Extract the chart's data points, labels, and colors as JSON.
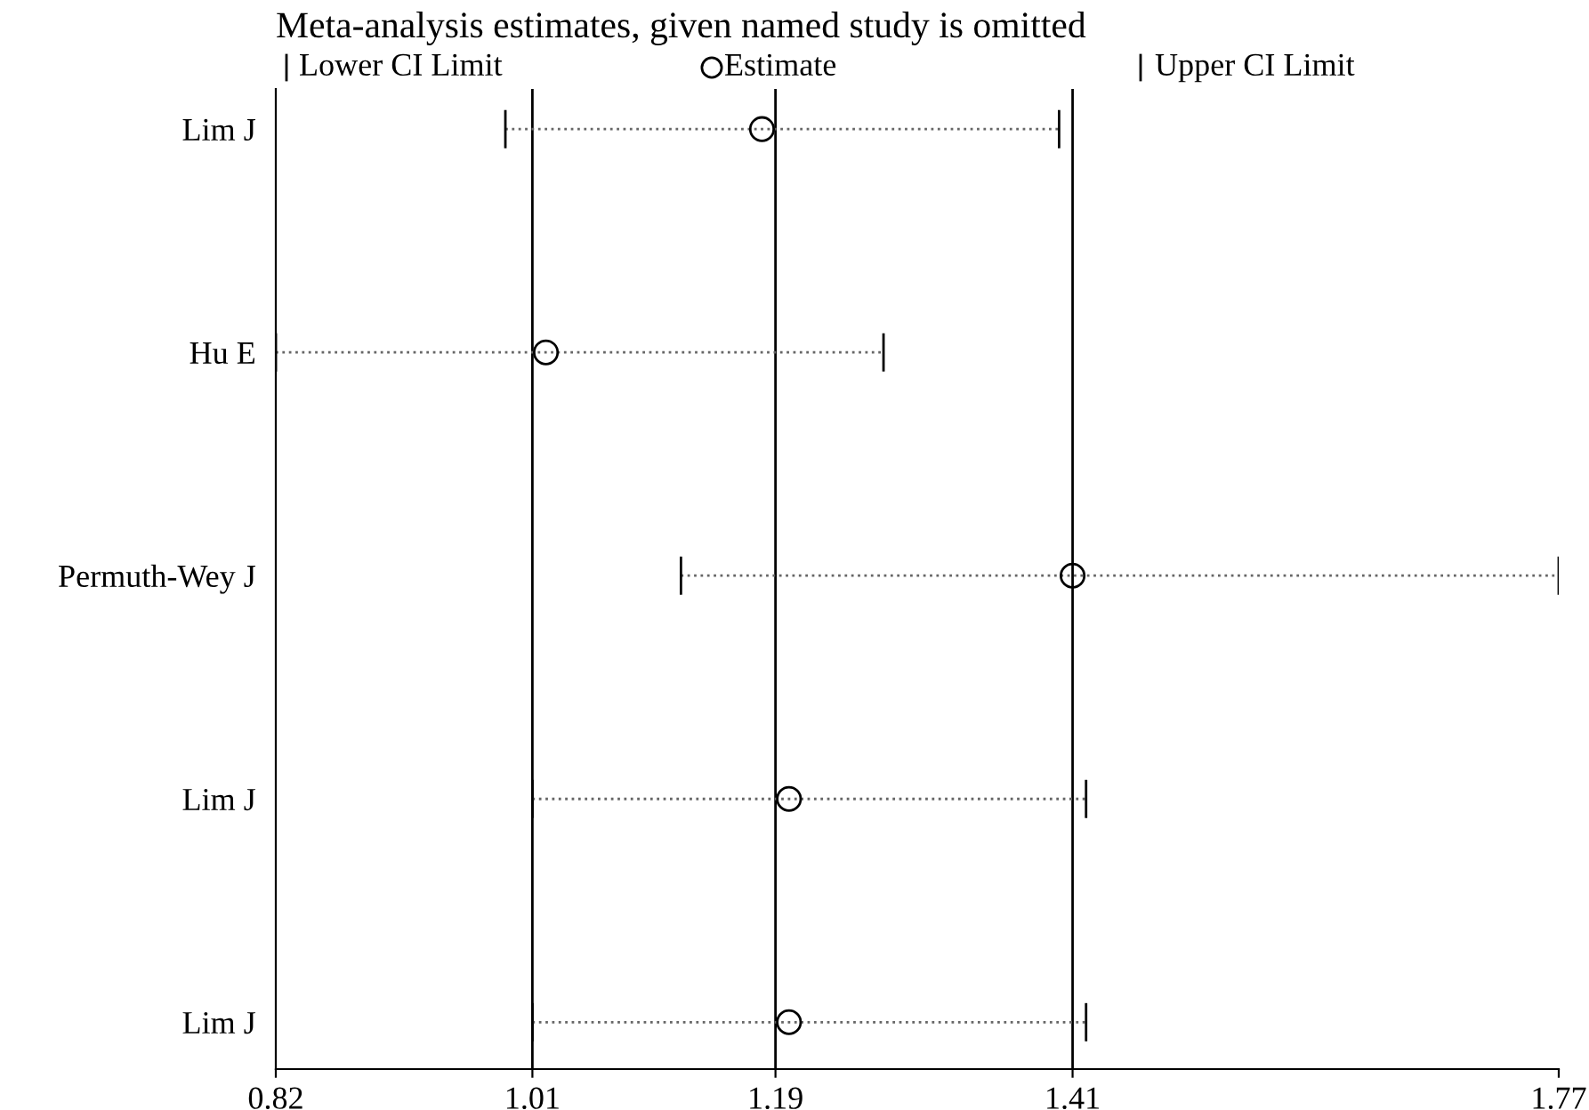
{
  "chart_data": {
    "type": "scatter",
    "orientation": "horizontal",
    "title": "Meta-analysis estimates, given named study is omitted",
    "categories": [
      "Lim J",
      "Hu E",
      "Permuth-Wey J",
      "Lim J",
      "Lim J"
    ],
    "series": [
      {
        "name": "Estimate",
        "color": "#000000",
        "values": [
          1.18,
          1.02,
          1.41,
          1.2,
          1.2
        ],
        "errors": [
          [
            0.99,
            1.4
          ],
          [
            0.82,
            1.27
          ],
          [
            1.12,
            1.77
          ],
          [
            1.01,
            1.42
          ],
          [
            1.01,
            1.42
          ]
        ]
      }
    ],
    "marker": "circle",
    "line_style": "dotted",
    "annotations": [
      "Lower CI Limit",
      "Upper CI Limit"
    ],
    "xlim": [
      0.82,
      1.77
    ],
    "xticks": [
      0.82,
      1.01,
      1.19,
      1.41,
      1.77
    ],
    "ref_lines": [
      {
        "axis": "x",
        "value": 1.01,
        "color": "#000000"
      },
      {
        "axis": "x",
        "value": 1.19,
        "color": "#000000"
      },
      {
        "axis": "x",
        "value": 1.41,
        "color": "#000000"
      }
    ],
    "grid": false,
    "legend": "top"
  }
}
